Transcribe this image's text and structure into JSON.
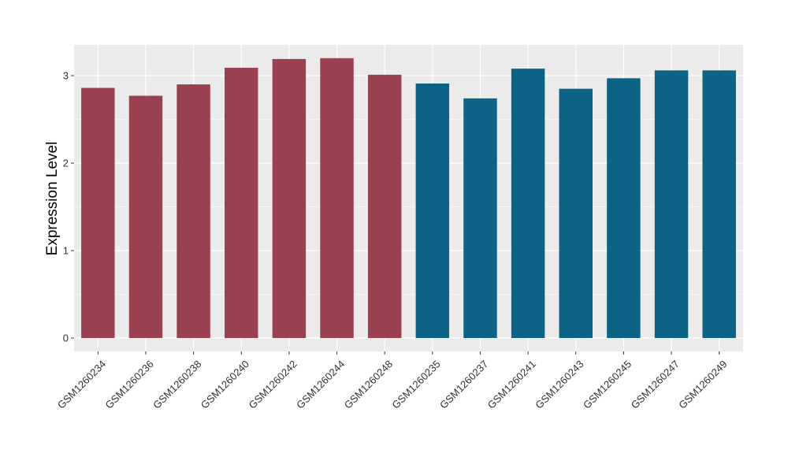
{
  "chart_data": {
    "type": "bar",
    "title": "",
    "xlabel": "",
    "ylabel": "Expression Level",
    "ylim": [
      0,
      3.3
    ],
    "yticks": [
      0,
      1,
      2,
      3
    ],
    "grid": true,
    "colors": {
      "panel": "#EBEBEB",
      "grid": "#FFFFFF",
      "group1": "#9A4150",
      "group2": "#0C6385"
    },
    "categories": [
      "GSM1260234",
      "GSM1260236",
      "GSM1260238",
      "GSM1260240",
      "GSM1260242",
      "GSM1260244",
      "GSM1260248",
      "GSM1260235",
      "GSM1260237",
      "GSM1260241",
      "GSM1260243",
      "GSM1260245",
      "GSM1260247",
      "GSM1260249"
    ],
    "values": [
      2.86,
      2.77,
      2.9,
      3.09,
      3.19,
      3.2,
      3.01,
      2.91,
      2.74,
      3.08,
      2.85,
      2.97,
      3.06,
      3.06
    ],
    "groups": [
      "group1",
      "group1",
      "group1",
      "group1",
      "group1",
      "group1",
      "group1",
      "group2",
      "group2",
      "group2",
      "group2",
      "group2",
      "group2",
      "group2"
    ]
  }
}
